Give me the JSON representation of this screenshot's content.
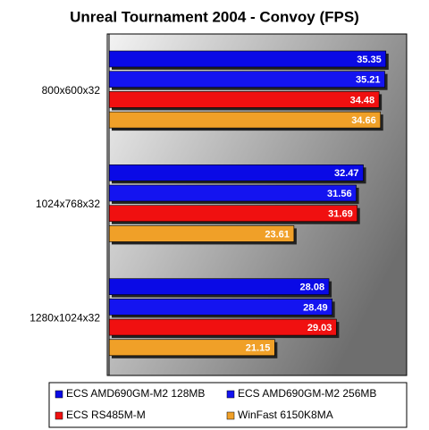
{
  "chart_data": {
    "type": "bar",
    "orientation": "horizontal",
    "title": "Unreal Tournament 2004 - Convoy (FPS)",
    "categories": [
      "800x600x32",
      "1024x768x32",
      "1280x1024x32"
    ],
    "series": [
      {
        "name": "ECS AMD690GM-M2 128MB",
        "color": "#0a0ae6",
        "values": [
          35.35,
          32.47,
          28.08
        ]
      },
      {
        "name": "ECS AMD690GM-M2 256MB",
        "color": "#1414f0",
        "values": [
          35.21,
          31.56,
          28.49
        ]
      },
      {
        "name": "ECS RS485M-M",
        "color": "#f01010",
        "values": [
          34.48,
          31.69,
          29.03
        ]
      },
      {
        "name": "WinFast 6150K8MA",
        "color": "#f0a028",
        "values": [
          34.66,
          23.61,
          21.15
        ]
      }
    ],
    "xlim": [
      0,
      38
    ]
  }
}
